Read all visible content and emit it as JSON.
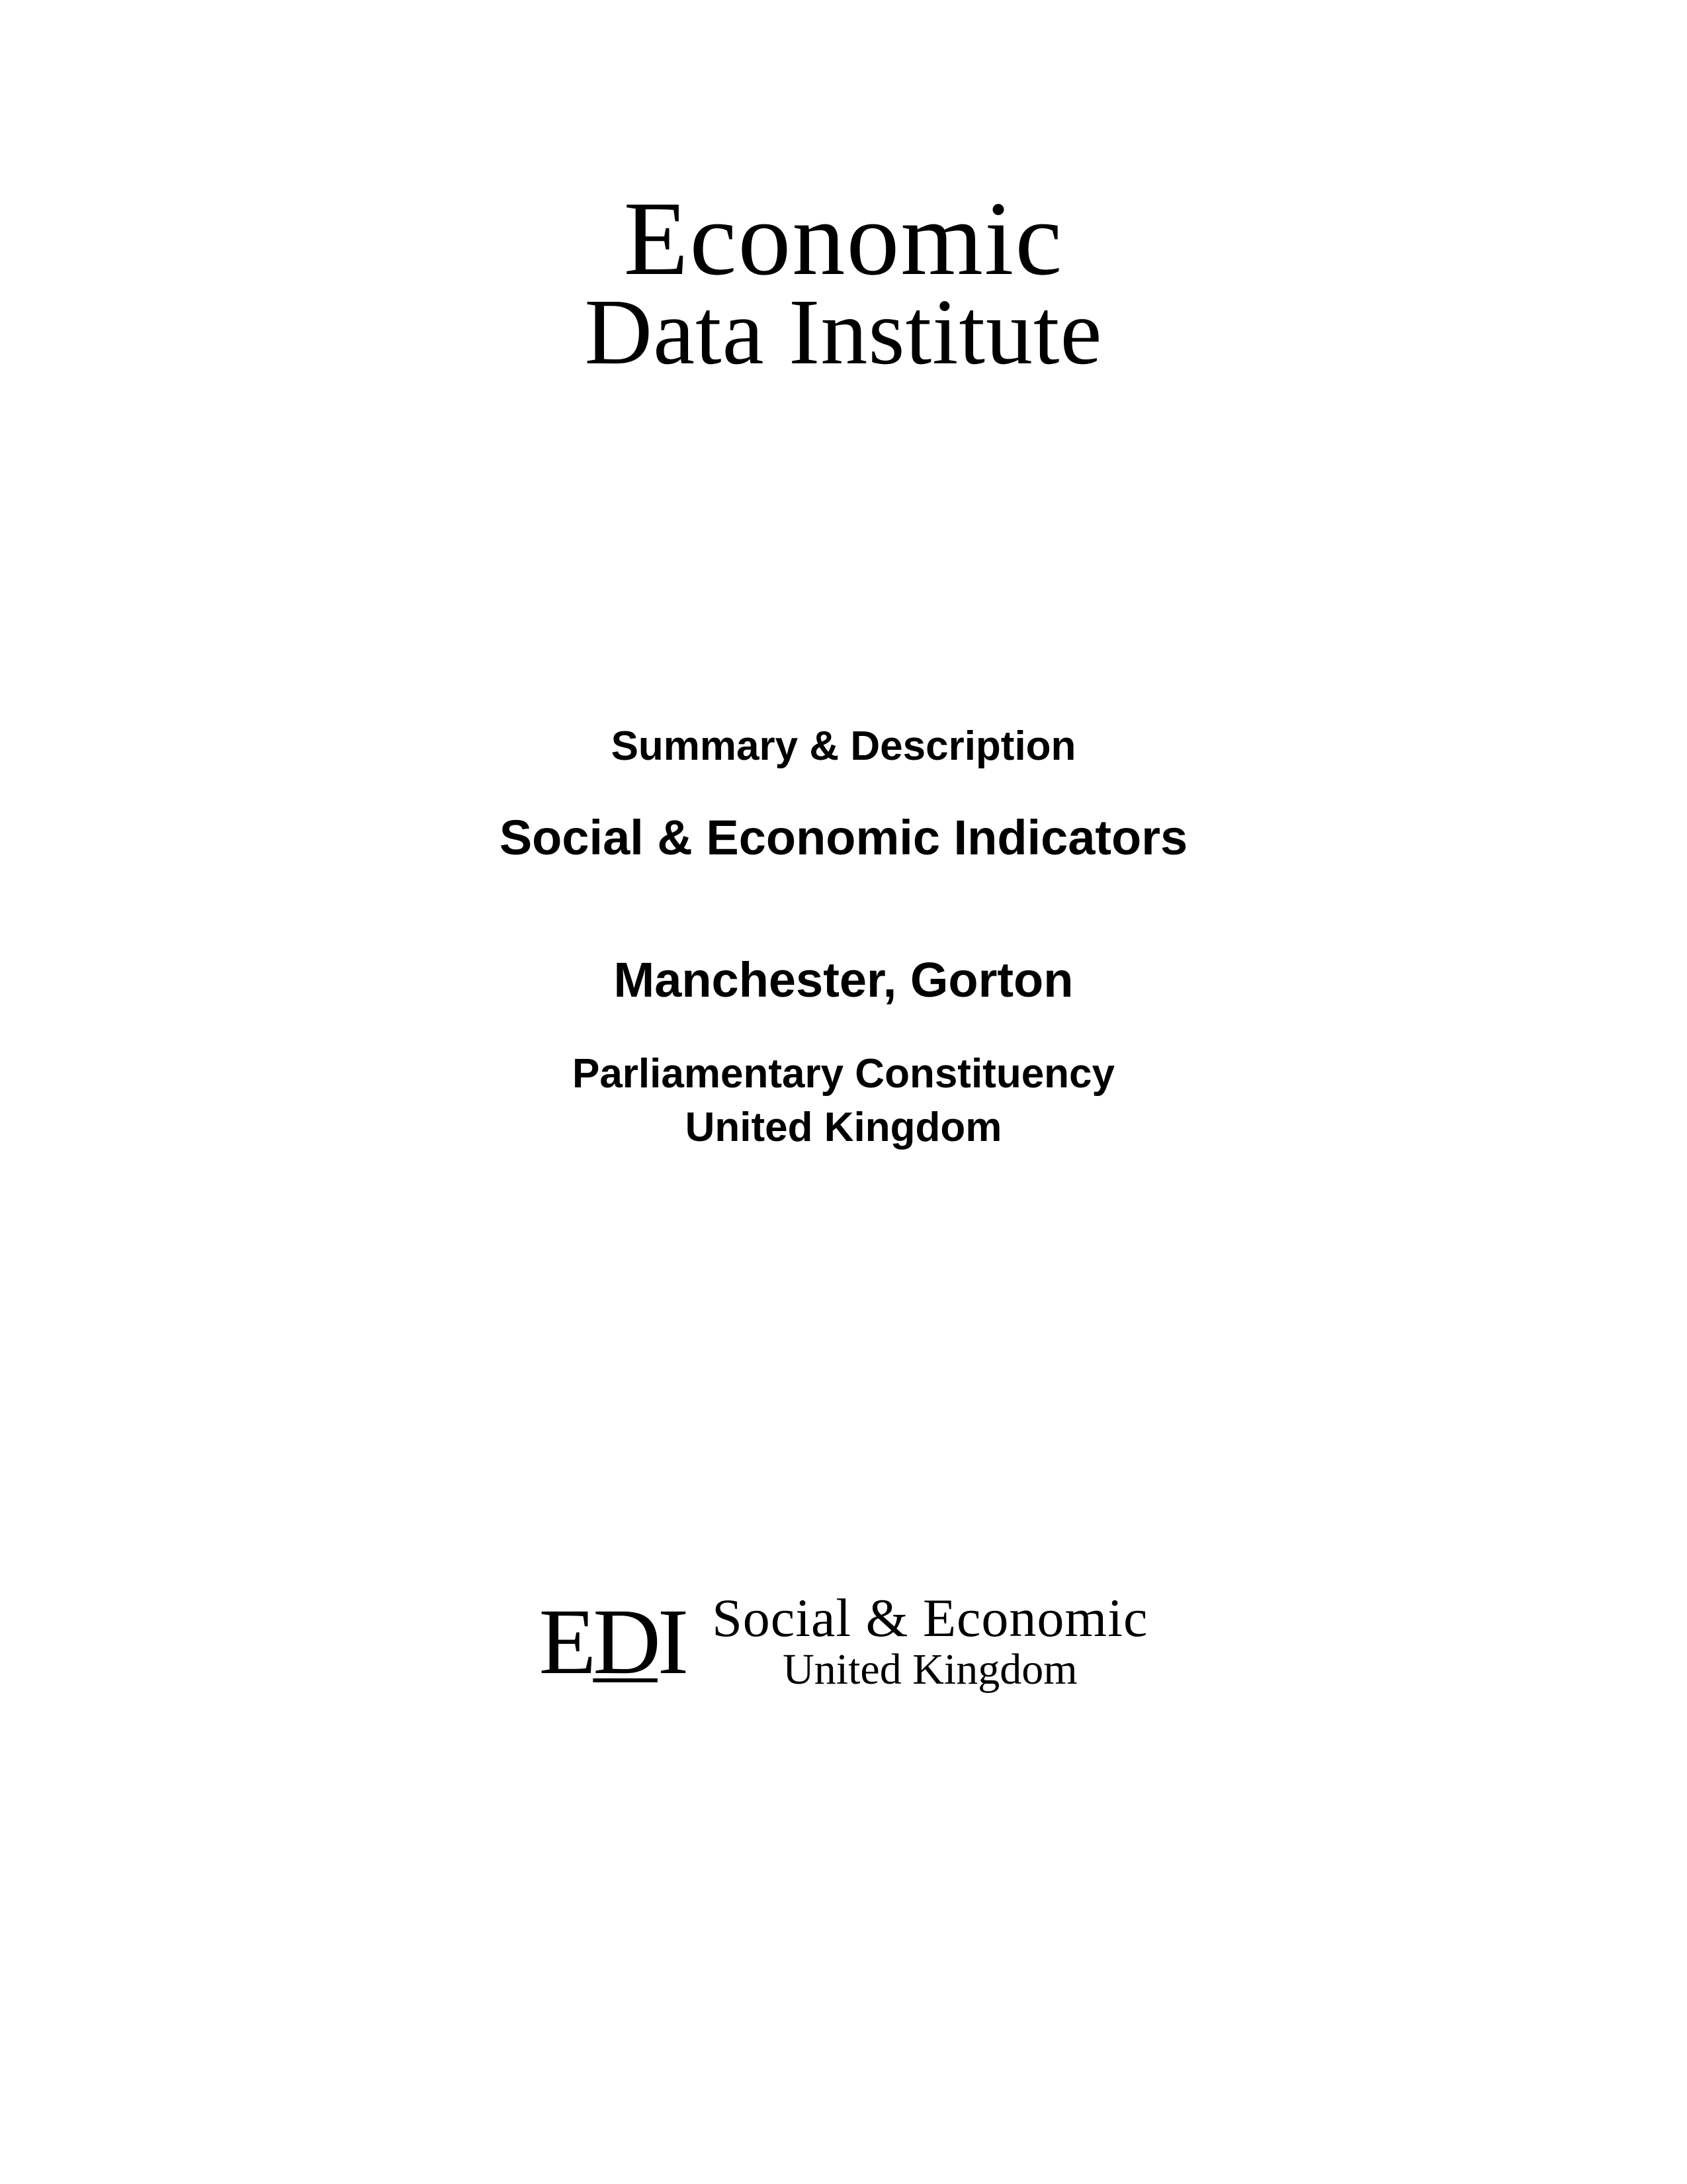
{
  "top_logo": {
    "line1": "Economic",
    "line2": "Data Institute"
  },
  "content": {
    "summary_heading": "Summary & Description",
    "main_title": "Social & Economic Indicators",
    "location": "Manchester, Gorton",
    "subtitle_line1": "Parliamentary Constituency",
    "subtitle_line2": "United Kingdom"
  },
  "bottom_logo": {
    "left_text_e": "E",
    "left_text_d": "D",
    "left_text_i": "I",
    "right_line1": "Social & Economic",
    "right_line2": "United Kingdom"
  },
  "colors": {
    "background": "#ffffff",
    "text": "#000000"
  },
  "typography": {
    "serif_font": "Georgia, Times New Roman, serif",
    "sans_font": "Arial, Helvetica, sans-serif",
    "top_logo_line1_size": 160,
    "top_logo_line2_size": 142,
    "summary_heading_size": 62,
    "main_title_size": 74,
    "location_size": 74,
    "subtitle_size": 62,
    "bottom_logo_left_size": 142,
    "bottom_logo_right_line1_size": 82,
    "bottom_logo_right_line2_size": 66
  }
}
